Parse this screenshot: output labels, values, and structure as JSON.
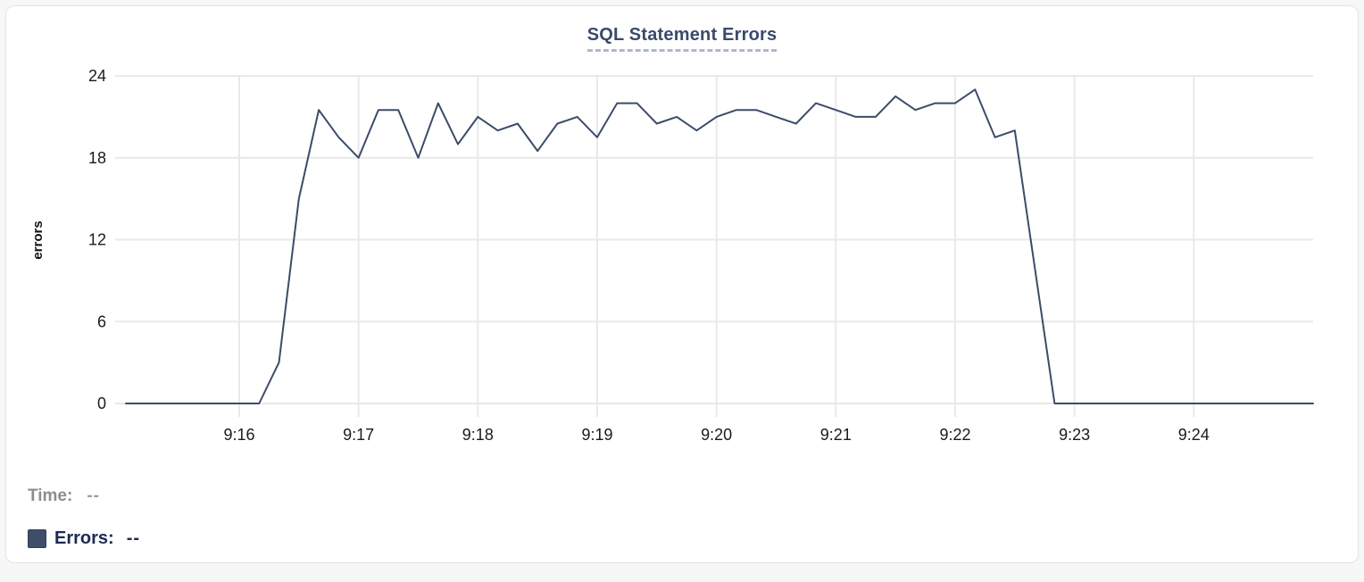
{
  "chart_data": {
    "type": "line",
    "title": "SQL Statement Errors",
    "xlabel": "",
    "ylabel": "errors",
    "ylim": [
      0,
      24
    ],
    "yticks": [
      0,
      6,
      12,
      18,
      24
    ],
    "xticks": [
      "9:16",
      "9:17",
      "9:18",
      "9:19",
      "9:20",
      "9:21",
      "9:22",
      "9:23",
      "9:24"
    ],
    "x_domain": [
      "9:15:03",
      "9:25:00"
    ],
    "grid": true,
    "legend_position": "bottom-left",
    "series": [
      {
        "name": "Errors",
        "color": "#3c4c68",
        "points": [
          [
            "9:15:03",
            0
          ],
          [
            "9:15:10",
            0
          ],
          [
            "9:15:20",
            0
          ],
          [
            "9:15:30",
            0
          ],
          [
            "9:15:40",
            0
          ],
          [
            "9:15:50",
            0
          ],
          [
            "9:16:00",
            0
          ],
          [
            "9:16:10",
            0
          ],
          [
            "9:16:20",
            3
          ],
          [
            "9:16:30",
            15
          ],
          [
            "9:16:40",
            21.5
          ],
          [
            "9:16:50",
            19.5
          ],
          [
            "9:17:00",
            18
          ],
          [
            "9:17:10",
            21.5
          ],
          [
            "9:17:20",
            21.5
          ],
          [
            "9:17:30",
            18
          ],
          [
            "9:17:40",
            22
          ],
          [
            "9:17:50",
            19
          ],
          [
            "9:18:00",
            21
          ],
          [
            "9:18:10",
            20
          ],
          [
            "9:18:20",
            20.5
          ],
          [
            "9:18:30",
            18.5
          ],
          [
            "9:18:40",
            20.5
          ],
          [
            "9:18:50",
            21
          ],
          [
            "9:19:00",
            19.5
          ],
          [
            "9:19:10",
            22
          ],
          [
            "9:19:20",
            22
          ],
          [
            "9:19:30",
            20.5
          ],
          [
            "9:19:40",
            21
          ],
          [
            "9:19:50",
            20
          ],
          [
            "9:20:00",
            21
          ],
          [
            "9:20:10",
            21.5
          ],
          [
            "9:20:20",
            21.5
          ],
          [
            "9:20:30",
            21
          ],
          [
            "9:20:40",
            20.5
          ],
          [
            "9:20:50",
            22
          ],
          [
            "9:21:00",
            21.5
          ],
          [
            "9:21:10",
            21
          ],
          [
            "9:21:20",
            21
          ],
          [
            "9:21:30",
            22.5
          ],
          [
            "9:21:40",
            21.5
          ],
          [
            "9:21:50",
            22
          ],
          [
            "9:22:00",
            22
          ],
          [
            "9:22:10",
            23
          ],
          [
            "9:22:20",
            19.5
          ],
          [
            "9:22:30",
            20
          ],
          [
            "9:22:40",
            10
          ],
          [
            "9:22:50",
            0
          ],
          [
            "9:23:00",
            0
          ],
          [
            "9:23:10",
            0
          ],
          [
            "9:23:20",
            0
          ],
          [
            "9:23:30",
            0
          ],
          [
            "9:23:40",
            0
          ],
          [
            "9:23:50",
            0
          ],
          [
            "9:24:00",
            0
          ],
          [
            "9:24:10",
            0
          ],
          [
            "9:24:20",
            0
          ],
          [
            "9:24:30",
            0
          ],
          [
            "9:24:40",
            0
          ],
          [
            "9:24:50",
            0
          ],
          [
            "9:25:00",
            0
          ]
        ]
      }
    ]
  },
  "tooltip": {
    "time_label": "Time:",
    "time_value": "--",
    "errors_label": "Errors:",
    "errors_value": "--"
  },
  "colors": {
    "line": "#3c4c68",
    "legend_swatch": "#3f4e68",
    "title": "#3b4a6b",
    "title_underline": "#aeb8cd",
    "grid": "#e9e9ea",
    "tick_label": "#1a1a1a",
    "axis_title": "#111111",
    "time_label": "#8c8c91",
    "errors_label": "#1d2a52",
    "card_border": "#e3e3e6"
  }
}
